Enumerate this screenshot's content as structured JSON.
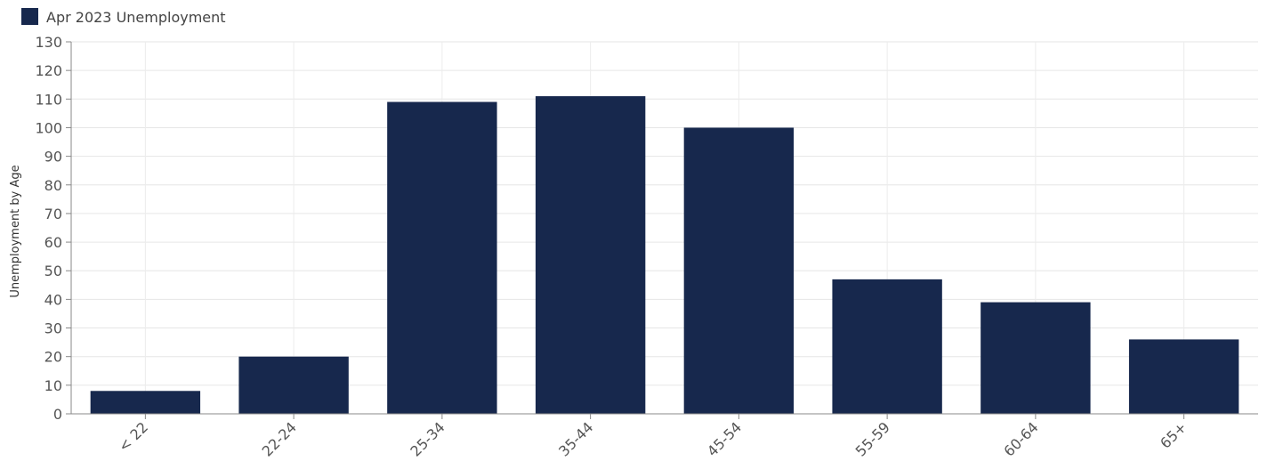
{
  "chart_data": {
    "type": "bar",
    "categories": [
      "< 22",
      "22-24",
      "25-34",
      "35-44",
      "45-54",
      "55-59",
      "60-64",
      "65+"
    ],
    "series": [
      {
        "name": "Apr 2023 Unemployment",
        "values": [
          8,
          20,
          109,
          111,
          100,
          47,
          39,
          26
        ],
        "color": "#17284d"
      }
    ],
    "ylabel": "Unemployment by Age",
    "xlabel": "",
    "ylim": [
      0,
      130
    ],
    "yticks": [
      0,
      10,
      20,
      30,
      40,
      50,
      60,
      70,
      80,
      90,
      100,
      110,
      120,
      130
    ],
    "grid": true,
    "legend_position": "top-left"
  }
}
